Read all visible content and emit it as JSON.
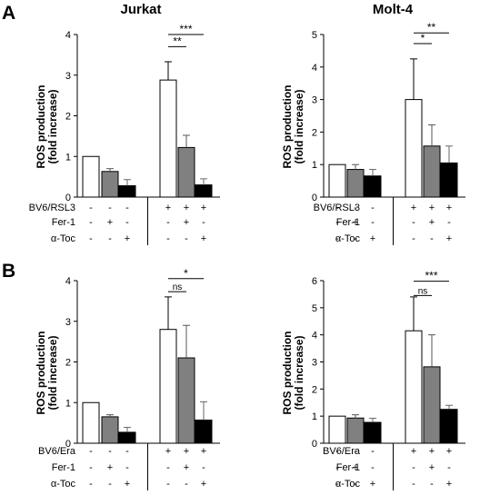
{
  "figure": {
    "panel_labels": [
      "A",
      "B"
    ],
    "condition_labels": [
      "-",
      "+"
    ]
  },
  "chart_data": [
    {
      "panel": "A",
      "title": "Jurkat",
      "type": "bar",
      "ylabel": [
        "ROS production",
        "(fold increase)"
      ],
      "ylim": [
        0,
        4
      ],
      "ticks": [
        0,
        1,
        2,
        3,
        4
      ],
      "rows": [
        {
          "label": "BV6/RSL3",
          "signs": [
            "-",
            "-",
            "-",
            "+",
            "+",
            "+"
          ]
        },
        {
          "label": "Fer-1",
          "signs": [
            "-",
            "+",
            "-",
            "-",
            "+",
            "-"
          ]
        },
        {
          "label": "α-Toc",
          "signs": [
            "-",
            "-",
            "+",
            "-",
            "-",
            "+"
          ]
        }
      ],
      "series": [
        {
          "color": "#ffffff",
          "values": [
            1.0,
            2.88
          ],
          "errors": [
            0.0,
            0.45
          ]
        },
        {
          "color": "#808080",
          "values": [
            0.63,
            1.22
          ],
          "errors": [
            0.07,
            0.3
          ]
        },
        {
          "color": "#000000",
          "values": [
            0.28,
            0.3
          ],
          "errors": [
            0.15,
            0.15
          ]
        }
      ],
      "significance": [
        {
          "from": 3,
          "to": 4,
          "label": "**",
          "y": 3.7
        },
        {
          "from": 3,
          "to": 5,
          "label": "***",
          "y": 4.0
        }
      ]
    },
    {
      "panel": "A",
      "title": "Molt-4",
      "type": "bar",
      "ylabel": [
        "ROS production",
        "(fold increase)"
      ],
      "ylim": [
        0,
        5
      ],
      "ticks": [
        0,
        1,
        2,
        3,
        4,
        5
      ],
      "rows": [
        {
          "label": "BV6/RSL3",
          "signs": [
            "-",
            "-",
            "-",
            "+",
            "+",
            "+"
          ]
        },
        {
          "label": "Fer-1",
          "signs": [
            "-",
            "+",
            "-",
            "-",
            "+",
            "-"
          ]
        },
        {
          "label": "α-Toc",
          "signs": [
            "-",
            "-",
            "+",
            "-",
            "-",
            "+"
          ]
        }
      ],
      "series": [
        {
          "color": "#ffffff",
          "values": [
            1.0,
            3.0
          ],
          "errors": [
            0.0,
            1.25
          ]
        },
        {
          "color": "#808080",
          "values": [
            0.85,
            1.57
          ],
          "errors": [
            0.15,
            0.65
          ]
        },
        {
          "color": "#000000",
          "values": [
            0.65,
            1.05
          ],
          "errors": [
            0.2,
            0.52
          ]
        }
      ],
      "significance": [
        {
          "from": 3,
          "to": 4,
          "label": "*",
          "y": 4.72
        },
        {
          "from": 3,
          "to": 5,
          "label": "**",
          "y": 5.05
        }
      ]
    },
    {
      "panel": "B",
      "title": "",
      "type": "bar",
      "ylabel": [
        "ROS production",
        "(fold increase)"
      ],
      "ylim": [
        0,
        4
      ],
      "ticks": [
        0,
        1,
        2,
        3,
        4
      ],
      "rows": [
        {
          "label": "BV6/Era",
          "signs": [
            "-",
            "-",
            "-",
            "+",
            "+",
            "+"
          ]
        },
        {
          "label": "Fer-1",
          "signs": [
            "-",
            "+",
            "-",
            "-",
            "+",
            "-"
          ]
        },
        {
          "label": "α-Toc",
          "signs": [
            "-",
            "-",
            "+",
            "-",
            "-",
            "+"
          ]
        }
      ],
      "series": [
        {
          "color": "#ffffff",
          "values": [
            1.0,
            2.8
          ],
          "errors": [
            0.0,
            0.8
          ]
        },
        {
          "color": "#808080",
          "values": [
            0.65,
            2.1
          ],
          "errors": [
            0.05,
            0.8
          ]
        },
        {
          "color": "#000000",
          "values": [
            0.27,
            0.57
          ],
          "errors": [
            0.12,
            0.45
          ]
        }
      ],
      "significance": [
        {
          "from": 3,
          "to": 4,
          "label": "ns",
          "y": 3.73
        },
        {
          "from": 3,
          "to": 5,
          "label": "*",
          "y": 4.05
        }
      ]
    },
    {
      "panel": "B",
      "title": "",
      "type": "bar",
      "ylabel": [
        "ROS production",
        "(fold increase)"
      ],
      "ylim": [
        0,
        6
      ],
      "ticks": [
        0,
        1,
        2,
        3,
        4,
        5,
        6
      ],
      "rows": [
        {
          "label": "BV6/Era",
          "signs": [
            "-",
            "-",
            "-",
            "+",
            "+",
            "+"
          ]
        },
        {
          "label": "Fer-1",
          "signs": [
            "-",
            "+",
            "-",
            "-",
            "+",
            "-"
          ]
        },
        {
          "label": "α-Toc",
          "signs": [
            "-",
            "-",
            "+",
            "-",
            "-",
            "+"
          ]
        }
      ],
      "series": [
        {
          "color": "#ffffff",
          "values": [
            1.0,
            4.15
          ],
          "errors": [
            0.0,
            1.25
          ]
        },
        {
          "color": "#808080",
          "values": [
            0.93,
            2.82
          ],
          "errors": [
            0.12,
            1.18
          ]
        },
        {
          "color": "#000000",
          "values": [
            0.77,
            1.25
          ],
          "errors": [
            0.15,
            0.15
          ]
        }
      ],
      "significance": [
        {
          "from": 3,
          "to": 4,
          "label": "ns",
          "y": 5.45
        },
        {
          "from": 3,
          "to": 5,
          "label": "***",
          "y": 5.98
        }
      ]
    }
  ]
}
